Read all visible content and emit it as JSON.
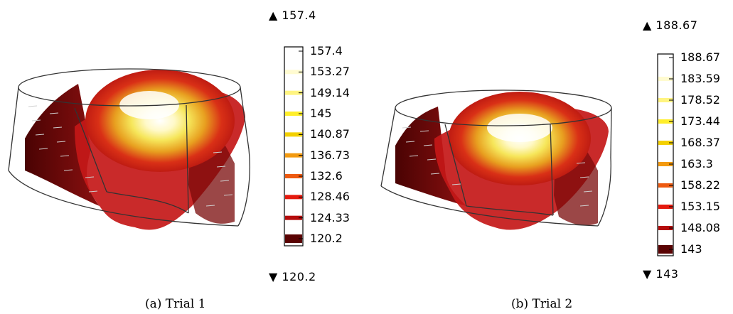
{
  "panels": [
    {
      "id": "a",
      "caption": "(a)  Trial 1",
      "colorbar": {
        "max_label": "▲ 157.4",
        "min_label": "▼ 120.2",
        "ticks": [
          "157.4",
          "153.27",
          "149.14",
          "145",
          "140.87",
          "136.73",
          "132.6",
          "128.46",
          "124.33",
          "120.2"
        ]
      }
    },
    {
      "id": "b",
      "caption": "(b)  Trial 2",
      "colorbar": {
        "max_label": "▲ 188.67",
        "min_label": "▼ 143",
        "ticks": [
          "188.67",
          "183.59",
          "178.52",
          "173.44",
          "168.37",
          "163.3",
          "158.22",
          "153.15",
          "148.08",
          "143"
        ]
      }
    }
  ],
  "colormap": [
    "#ffffff",
    "#fffbd0",
    "#fff480",
    "#ffee2a",
    "#f3d000",
    "#f39a10",
    "#ee5a10",
    "#e51a0e",
    "#b50c0c",
    "#5a0303"
  ]
}
